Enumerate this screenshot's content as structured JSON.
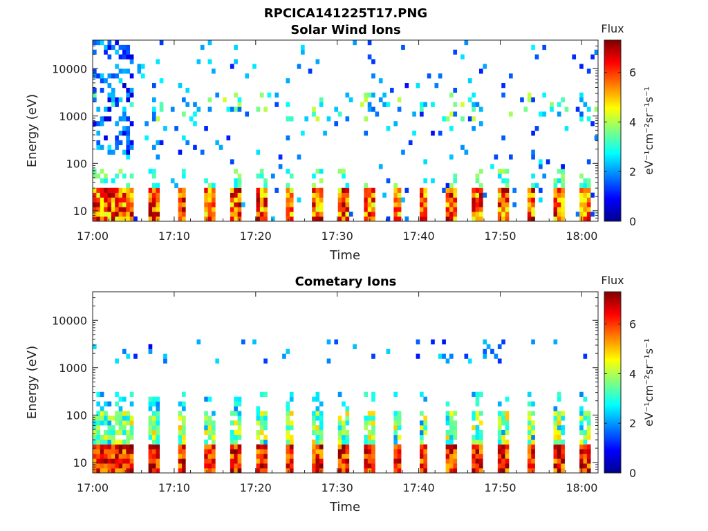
{
  "figure": {
    "title": "RPCICA141225T17.PNG"
  },
  "chart_data": [
    {
      "type": "heatmap",
      "title": "Solar Wind Ions",
      "xlabel": "Time",
      "ylabel": "Energy (eV)",
      "x_ticks": [
        "17:00",
        "17:10",
        "17:20",
        "17:30",
        "17:40",
        "17:50",
        "18:00"
      ],
      "x_range": [
        "17:00",
        "18:02"
      ],
      "y_scale": "log",
      "y_ticks": [
        "10",
        "100",
        "1000",
        "10000"
      ],
      "y_range": [
        6,
        40000
      ],
      "colorbar": {
        "label": "Flux",
        "unit": "eV⁻¹cm⁻²sr⁻¹s⁻¹",
        "ticks": [
          "0",
          "2",
          "4",
          "6"
        ],
        "range": [
          0,
          7.3
        ]
      },
      "colormap": "jet",
      "pattern": "low-energy bursts (~10–30 eV, flux 5–7) every ~3 min; sparse high-energy points up to ~30000 eV"
    },
    {
      "type": "heatmap",
      "title": "Cometary Ions",
      "xlabel": "Time",
      "ylabel": "Energy (eV)",
      "x_ticks": [
        "17:00",
        "17:10",
        "17:20",
        "17:30",
        "17:40",
        "17:50",
        "18:00"
      ],
      "x_range": [
        "17:00",
        "18:02"
      ],
      "y_scale": "log",
      "y_ticks": [
        "10",
        "100",
        "1000",
        "10000"
      ],
      "y_range": [
        6,
        40000
      ],
      "colorbar": {
        "label": "Flux",
        "unit": "eV⁻¹cm⁻²sr⁻¹s⁻¹",
        "ticks": [
          "0",
          "2",
          "4",
          "6"
        ],
        "range": [
          0,
          7.3
        ]
      },
      "colormap": "jet",
      "pattern": "strong bursts (~8–25 eV, flux ~7) every ~3 min with tails to ~300 eV; sparse points ~2000 eV"
    }
  ],
  "colors": {
    "colormap_low": "#00008f",
    "colormap_high": "#800000",
    "axis": "#222222"
  }
}
